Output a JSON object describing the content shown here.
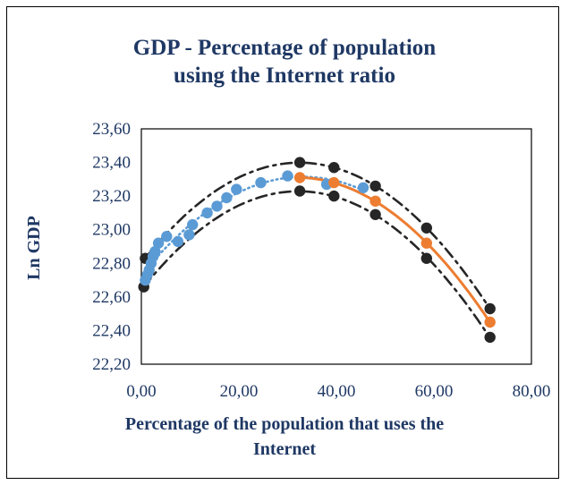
{
  "chart_data": {
    "type": "scatter",
    "title_lines": [
      "GDP - Percentage of population",
      "using the Internet ratio"
    ],
    "xlabel_lines": [
      "Percentage of the population that uses the",
      "Internet"
    ],
    "ylabel": "Ln GDP",
    "xlim": [
      0,
      80
    ],
    "ylim": [
      22.2,
      23.6
    ],
    "x_ticks": [
      "0,00",
      "20,00",
      "40,00",
      "60,00",
      "80,00"
    ],
    "y_ticks": [
      "22,20",
      "22,40",
      "22,60",
      "22,80",
      "23,00",
      "23,20",
      "23,40",
      "23,60"
    ],
    "grid": false,
    "legend": "none",
    "series": [
      {
        "color": "#5B9BD5",
        "line_style": "dotted fitted curve",
        "points": [
          [
            0.8,
            22.7
          ],
          [
            1.2,
            22.73
          ],
          [
            1.6,
            22.76
          ],
          [
            2.0,
            22.8
          ],
          [
            2.4,
            22.84
          ],
          [
            2.8,
            22.87
          ],
          [
            3.5,
            22.92
          ],
          [
            5.2,
            22.96
          ],
          [
            7.5,
            22.93
          ],
          [
            9.8,
            22.97
          ],
          [
            10.5,
            23.03
          ],
          [
            13.5,
            23.1
          ],
          [
            15.5,
            23.14
          ],
          [
            17.5,
            23.19
          ],
          [
            19.5,
            23.24
          ],
          [
            24.5,
            23.28
          ],
          [
            30.0,
            23.32
          ],
          [
            38.0,
            23.27
          ],
          [
            45.5,
            23.25
          ]
        ]
      },
      {
        "color": "#ED7D31",
        "line_style": "solid fitted curve",
        "points": [
          [
            32.5,
            23.31
          ],
          [
            39.5,
            23.28
          ],
          [
            48.0,
            23.17
          ],
          [
            58.5,
            22.92
          ],
          [
            71.5,
            22.45
          ]
        ]
      },
      {
        "color": "#262626",
        "line_style": "dashed upper band",
        "points": [
          [
            0.8,
            22.83
          ],
          [
            32.5,
            23.4
          ],
          [
            39.5,
            23.37
          ],
          [
            48.0,
            23.26
          ],
          [
            58.5,
            23.01
          ],
          [
            71.5,
            22.53
          ]
        ]
      },
      {
        "color": "#262626",
        "line_style": "dashed lower band",
        "points": [
          [
            0.5,
            22.66
          ],
          [
            32.5,
            23.23
          ],
          [
            39.5,
            23.2
          ],
          [
            48.0,
            23.09
          ],
          [
            58.5,
            22.83
          ],
          [
            71.5,
            22.36
          ]
        ]
      }
    ]
  }
}
